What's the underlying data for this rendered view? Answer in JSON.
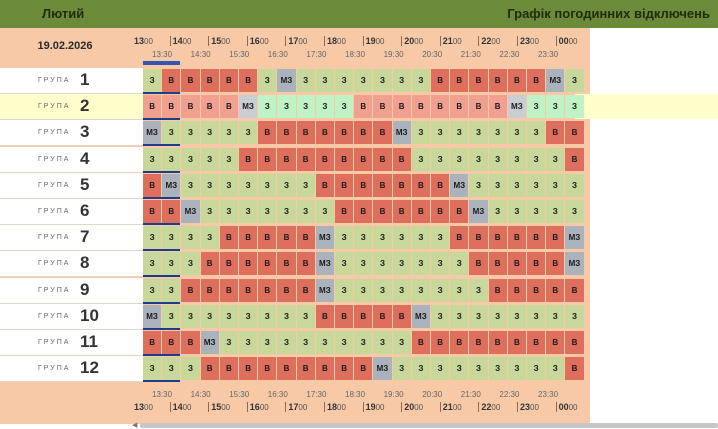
{
  "header": {
    "month": "Лютий",
    "title": "Графік погодинних відключень"
  },
  "date": "19.02.2026",
  "hours_top": [
    {
      "h": "13",
      "m": "00"
    },
    {
      "h": "14",
      "m": "00"
    },
    {
      "h": "15",
      "m": "00"
    },
    {
      "h": "16",
      "m": "00"
    },
    {
      "h": "17",
      "m": "00"
    },
    {
      "h": "18",
      "m": "00"
    },
    {
      "h": "19",
      "m": "00"
    },
    {
      "h": "20",
      "m": "00"
    },
    {
      "h": "21",
      "m": "00"
    },
    {
      "h": "22",
      "m": "00"
    },
    {
      "h": "23",
      "m": "00"
    },
    {
      "h": "00",
      "m": "00"
    }
  ],
  "half_hours": [
    "13:30",
    "14:30",
    "15:30",
    "16:30",
    "17:30",
    "18:30",
    "19:30",
    "20:30",
    "21:30",
    "22:30",
    "23:30"
  ],
  "group_word": "ГРУПА",
  "groups": [
    {
      "num": "1",
      "cells": "ZVVVVVZMZZZZZZZVVVVVVMZ"
    },
    {
      "num": "2",
      "cells": "VVVVVMZZZZZVVVVVVVVMZZZ"
    },
    {
      "num": "3",
      "cells": "MZZZZZVVVVVVVMZZZZZZZVV"
    },
    {
      "num": "4",
      "cells": "ZZZZZVVVVVVVVVZZZZZZZZV"
    },
    {
      "num": "5",
      "cells": "VMZZZZZZZVVVVVVVMZZZZZZ"
    },
    {
      "num": "6",
      "cells": "VVMZZZZZZZVVVVVVVMZZZZZ"
    },
    {
      "num": "7",
      "cells": "ZZZZVVVVVMZZZZZZVVVVVVM"
    },
    {
      "num": "8",
      "cells": "ZZZVVVVVVMZZZZZZZVVVVVM"
    },
    {
      "num": "9",
      "cells": "ZZVVVVVVVMZZZZZZZZVVVVV"
    },
    {
      "num": "10",
      "cells": "MZZZZZZZZVVVVVMZZZZZZZZ"
    },
    {
      "num": "11",
      "cells": "VVVMZZZZZZZZZZVVVVVVVVV"
    },
    {
      "num": "12",
      "cells": "ZZZVVVVVVVVVMZZZZZZZZZV"
    }
  ],
  "highlighted_group": "2",
  "current_slot_count": 2,
  "cell_labels": {
    "V": "В",
    "Z": "З",
    "M": "МЗ"
  },
  "icons": {
    "up": "arrow-up-icon"
  }
}
